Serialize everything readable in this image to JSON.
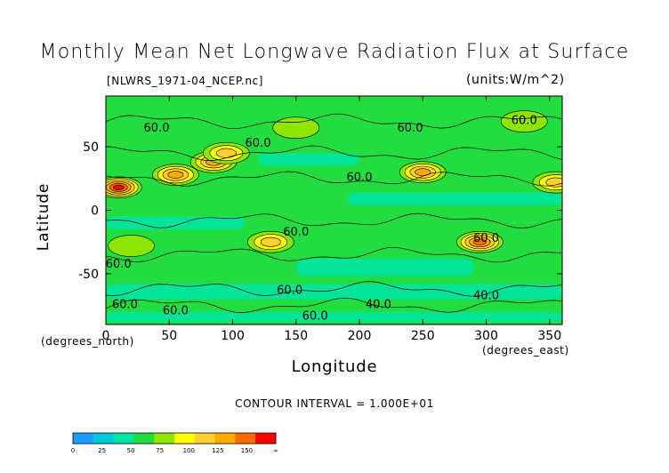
{
  "header": {
    "title": "Monthly Mean Net Longwave Radiation Flux at Surface",
    "subtitle": "[NLWRS_1971-04_NCEP.nc]",
    "units": "(units:W/m^2)"
  },
  "footer": {
    "contour_interval": "CONTOUR INTERVAL = 1.000E+01"
  },
  "chart_data": {
    "type": "heatmap",
    "xlabel": "Longitude",
    "ylabel": "Latitude",
    "xunit_label": "(degrees_east)",
    "yunit_label": "(degrees_north)",
    "xlim": [
      0,
      360
    ],
    "ylim": [
      -90,
      90
    ],
    "xticks": [
      0,
      50,
      100,
      150,
      200,
      250,
      300,
      350
    ],
    "yticks": [
      50,
      0,
      -50
    ],
    "contour_labels": [
      {
        "lon": 40,
        "lat": 62,
        "text": "60.0"
      },
      {
        "lon": 120,
        "lat": 50,
        "text": "60.0"
      },
      {
        "lon": 240,
        "lat": 62,
        "text": "60.0"
      },
      {
        "lon": 200,
        "lat": 23,
        "text": "60.0"
      },
      {
        "lon": 330,
        "lat": 68,
        "text": "60.0"
      },
      {
        "lon": 150,
        "lat": -20,
        "text": "60.0"
      },
      {
        "lon": 300,
        "lat": -25,
        "text": "60.0"
      },
      {
        "lon": 10,
        "lat": -45,
        "text": "60.0"
      },
      {
        "lon": 145,
        "lat": -66,
        "text": "60.0"
      },
      {
        "lon": 15,
        "lat": -77,
        "text": "60.0"
      },
      {
        "lon": 55,
        "lat": -82,
        "text": "60.0"
      },
      {
        "lon": 165,
        "lat": -86,
        "text": "60.0"
      },
      {
        "lon": 300,
        "lat": -70,
        "text": "40.0"
      },
      {
        "lon": 215,
        "lat": -77,
        "text": "40.0"
      }
    ],
    "colorbar": {
      "ticks": [
        "0",
        "25",
        "50",
        "75",
        "100",
        "125",
        "150",
        "∞"
      ],
      "colors": [
        "#1e9bff",
        "#00c8d7",
        "#00e6a0",
        "#22dd40",
        "#8ee600",
        "#ffff00",
        "#ffd030",
        "#ffaa00",
        "#ff6a00",
        "#ff0000"
      ]
    },
    "features": [
      {
        "lon": 10,
        "lat": 18,
        "value": 150
      },
      {
        "lon": 55,
        "lat": 28,
        "value": 120
      },
      {
        "lon": 85,
        "lat": 38,
        "value": 125
      },
      {
        "lon": 95,
        "lat": 45,
        "value": 100
      },
      {
        "lon": 250,
        "lat": 30,
        "value": 120
      },
      {
        "lon": 355,
        "lat": 22,
        "value": 110
      },
      {
        "lon": 130,
        "lat": -25,
        "value": 100
      },
      {
        "lon": 295,
        "lat": -25,
        "value": 140
      },
      {
        "lon": 20,
        "lat": -28,
        "value": 80
      },
      {
        "lon": 330,
        "lat": 70,
        "value": 80
      },
      {
        "lon": 150,
        "lat": 65,
        "value": 75
      }
    ]
  }
}
